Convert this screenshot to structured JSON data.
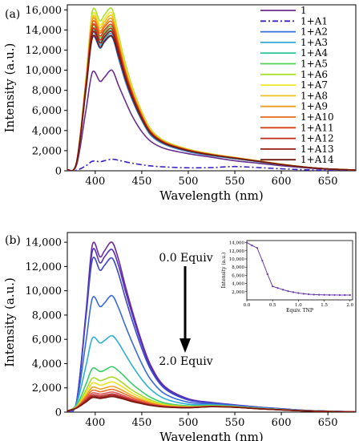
{
  "chart_data": [
    {
      "type": "line",
      "panel_label": "(a)",
      "xlabel": "Wavelength (nm)",
      "ylabel": "Intensity (a.u.)",
      "xlim": [
        370,
        680
      ],
      "ylim": [
        0,
        16500
      ],
      "xticks": [
        400,
        450,
        500,
        550,
        600,
        650
      ],
      "yticks": [
        0,
        2000,
        4000,
        6000,
        8000,
        10000,
        12000,
        14000,
        16000
      ],
      "ytick_labels": [
        "0",
        "2,000",
        "4,000",
        "6,000",
        "8,000",
        "10,000",
        "12,000",
        "14,000",
        "16,000"
      ],
      "legend_position": "top-right",
      "x": [
        370,
        380,
        390,
        397,
        405,
        410,
        418,
        425,
        432,
        440,
        450,
        460,
        475,
        500,
        525,
        550,
        575,
        600,
        625,
        650,
        680
      ],
      "series": [
        {
          "name": "1",
          "color": "#6a2e8e",
          "dash": "solid",
          "values": [
            100,
            600,
            6000,
            9800,
            8900,
            9300,
            10000,
            8500,
            7000,
            5400,
            3900,
            2900,
            2200,
            1700,
            1350,
            1000,
            750,
            500,
            300,
            150,
            60
          ]
        },
        {
          "name": "1+A1",
          "color": "#3a22c8",
          "dash": "dashdot",
          "values": [
            0,
            50,
            500,
            950,
            900,
            1000,
            1150,
            1050,
            900,
            750,
            600,
            480,
            380,
            300,
            320,
            420,
            320,
            200,
            100,
            50,
            20
          ]
        },
        {
          "name": "1+A2",
          "color": "#2f6fd8",
          "dash": "solid",
          "values": [
            100,
            800,
            8000,
            13200,
            12200,
            12800,
            13300,
            11200,
            9000,
            7000,
            5000,
            3500,
            2600,
            1900,
            1500,
            1200,
            900,
            600,
            350,
            180,
            70
          ]
        },
        {
          "name": "1+A3",
          "color": "#35a8d8",
          "dash": "solid",
          "values": [
            100,
            820,
            8200,
            13600,
            12500,
            13100,
            13600,
            11500,
            9200,
            7200,
            5100,
            3600,
            2650,
            1950,
            1530,
            1220,
            920,
            610,
            355,
            180,
            70
          ]
        },
        {
          "name": "1+A4",
          "color": "#2fc89a",
          "dash": "solid",
          "values": [
            100,
            830,
            8300,
            13900,
            12800,
            13400,
            13900,
            11700,
            9400,
            7300,
            5200,
            3650,
            2700,
            1980,
            1560,
            1240,
            930,
            620,
            360,
            185,
            70
          ]
        },
        {
          "name": "1+A5",
          "color": "#4fd24f",
          "dash": "solid",
          "values": [
            100,
            850,
            8500,
            14300,
            13200,
            13800,
            14300,
            12000,
            9700,
            7500,
            5350,
            3750,
            2750,
            2020,
            1580,
            1260,
            950,
            630,
            365,
            185,
            72
          ]
        },
        {
          "name": "1+A6",
          "color": "#a8e030",
          "dash": "solid",
          "values": [
            100,
            900,
            9200,
            15900,
            14900,
            15500,
            16100,
            13500,
            10800,
            8300,
            5900,
            4100,
            2950,
            2150,
            1680,
            1330,
            1000,
            660,
            380,
            190,
            75
          ]
        },
        {
          "name": "1+A7",
          "color": "#eee82a",
          "dash": "solid",
          "values": [
            100,
            880,
            9000,
            15500,
            14500,
            15100,
            15700,
            13200,
            10500,
            8100,
            5750,
            4000,
            2900,
            2120,
            1660,
            1310,
            990,
            650,
            375,
            188,
            74
          ]
        },
        {
          "name": "1+A8",
          "color": "#f0c020",
          "dash": "solid",
          "values": [
            100,
            870,
            8900,
            15200,
            14200,
            14800,
            15400,
            12900,
            10300,
            7950,
            5650,
            3950,
            2870,
            2100,
            1640,
            1300,
            980,
            645,
            372,
            186,
            73
          ]
        },
        {
          "name": "1+A9",
          "color": "#f09a1a",
          "dash": "solid",
          "values": [
            100,
            860,
            8800,
            15000,
            13900,
            14500,
            15100,
            12700,
            10100,
            7800,
            5550,
            3900,
            2840,
            2080,
            1630,
            1290,
            970,
            640,
            370,
            185,
            72
          ]
        },
        {
          "name": "1+A10",
          "color": "#e86818",
          "dash": "solid",
          "values": [
            100,
            850,
            8700,
            14700,
            13700,
            14300,
            14800,
            12500,
            9950,
            7700,
            5500,
            3850,
            2810,
            2060,
            1615,
            1280,
            965,
            635,
            368,
            184,
            72
          ]
        },
        {
          "name": "1+A11",
          "color": "#d84018",
          "dash": "solid",
          "values": [
            100,
            840,
            8600,
            14400,
            13400,
            14000,
            14500,
            12300,
            9800,
            7600,
            5420,
            3800,
            2780,
            2040,
            1600,
            1270,
            958,
            630,
            365,
            183,
            71
          ]
        },
        {
          "name": "1+A12",
          "color": "#c02818",
          "dash": "solid",
          "values": [
            100,
            830,
            8400,
            14000,
            13000,
            13600,
            14100,
            12000,
            9600,
            7450,
            5320,
            3740,
            2740,
            2015,
            1585,
            1260,
            950,
            625,
            362,
            182,
            71
          ]
        },
        {
          "name": "1+A13",
          "color": "#981c14",
          "dash": "solid",
          "values": [
            100,
            820,
            8300,
            13700,
            12700,
            13300,
            13800,
            11800,
            9450,
            7350,
            5250,
            3700,
            2720,
            2000,
            1575,
            1255,
            945,
            622,
            360,
            181,
            70
          ]
        },
        {
          "name": "1+A14",
          "color": "#6e1a10",
          "dash": "solid",
          "values": [
            100,
            810,
            8100,
            13300,
            12300,
            12900,
            13400,
            11500,
            9250,
            7200,
            5150,
            3650,
            2690,
            1985,
            1565,
            1250,
            940,
            620,
            358,
            180,
            70
          ]
        }
      ]
    },
    {
      "type": "line",
      "panel_label": "(b)",
      "xlabel": "Wavelength (nm)",
      "ylabel": "Intensity (a.u.)",
      "xlim": [
        370,
        680
      ],
      "ylim": [
        0,
        14800
      ],
      "xticks": [
        400,
        450,
        500,
        550,
        600,
        650
      ],
      "yticks": [
        0,
        2000,
        4000,
        6000,
        8000,
        10000,
        12000,
        14000
      ],
      "ytick_labels": [
        "0",
        "2,000",
        "4,000",
        "6,000",
        "8,000",
        "10,000",
        "12,000",
        "14,000"
      ],
      "annotations": {
        "start": "0.0 Equiv",
        "end": "2.0 Equiv"
      },
      "x": [
        370,
        380,
        390,
        397,
        405,
        410,
        418,
        425,
        432,
        440,
        450,
        460,
        475,
        500,
        525,
        550,
        575,
        600,
        625,
        650,
        680
      ],
      "series": [
        {
          "name": "",
          "color": "#6a2a9e",
          "dash": "solid",
          "values": [
            100,
            900,
            8200,
            13800,
            12800,
            13300,
            14000,
            12600,
            10500,
            8300,
            5800,
            3800,
            2100,
            1100,
            800,
            600,
            420,
            280,
            150,
            80,
            30
          ]
        },
        {
          "name": "",
          "color": "#5530b8",
          "dash": "solid",
          "values": [
            100,
            880,
            8000,
            13300,
            12300,
            12800,
            13400,
            12100,
            10100,
            8000,
            5600,
            3650,
            2030,
            1060,
            780,
            585,
            410,
            275,
            148,
            78,
            30
          ]
        },
        {
          "name": "",
          "color": "#3f46cc",
          "dash": "solid",
          "values": [
            100,
            860,
            7800,
            12600,
            11700,
            12100,
            12700,
            11400,
            9500,
            7500,
            5250,
            3450,
            1920,
            1000,
            750,
            570,
            400,
            270,
            145,
            76,
            29
          ]
        },
        {
          "name": "",
          "color": "#3a6ad8",
          "dash": "solid",
          "values": [
            100,
            800,
            5800,
            9400,
            8700,
            9000,
            9600,
            8600,
            7200,
            5700,
            4000,
            2650,
            1500,
            820,
            680,
            540,
            380,
            255,
            138,
            72,
            28
          ]
        },
        {
          "name": "",
          "color": "#2fb0d0",
          "dash": "solid",
          "values": [
            100,
            700,
            3800,
            6100,
            5700,
            5900,
            6300,
            5700,
            4800,
            3800,
            2700,
            1850,
            1100,
            650,
            600,
            500,
            350,
            235,
            128,
            68,
            26
          ]
        },
        {
          "name": "",
          "color": "#3acc6a",
          "dash": "solid",
          "values": [
            100,
            550,
            2300,
            3600,
            3350,
            3450,
            3750,
            3400,
            2900,
            2300,
            1700,
            1200,
            750,
            520,
            540,
            460,
            320,
            215,
            118,
            62,
            24
          ]
        },
        {
          "name": "",
          "color": "#a8d828",
          "dash": "solid",
          "values": [
            100,
            480,
            1800,
            2800,
            2600,
            2700,
            2900,
            2650,
            2250,
            1800,
            1350,
            980,
            640,
            470,
            510,
            440,
            305,
            205,
            112,
            60,
            23
          ]
        },
        {
          "name": "",
          "color": "#f0e020",
          "dash": "solid",
          "values": [
            100,
            440,
            1550,
            2400,
            2230,
            2300,
            2500,
            2280,
            1950,
            1560,
            1180,
            870,
            580,
            440,
            495,
            430,
            298,
            200,
            110,
            58,
            22
          ]
        },
        {
          "name": "",
          "color": "#f0a020",
          "dash": "solid",
          "values": [
            100,
            410,
            1350,
            2050,
            1900,
            1980,
            2130,
            1950,
            1680,
            1350,
            1030,
            770,
            530,
            415,
            480,
            420,
            292,
            196,
            108,
            57,
            22
          ]
        },
        {
          "name": "",
          "color": "#e87028",
          "dash": "solid",
          "values": [
            100,
            390,
            1200,
            1800,
            1680,
            1750,
            1880,
            1720,
            1490,
            1200,
            930,
            700,
            495,
            400,
            470,
            415,
            288,
            193,
            106,
            56,
            21
          ]
        },
        {
          "name": "",
          "color": "#e05050",
          "dash": "solid",
          "values": [
            100,
            370,
            1080,
            1580,
            1480,
            1540,
            1660,
            1520,
            1320,
            1070,
            840,
            640,
            465,
            385,
            462,
            410,
            284,
            190,
            104,
            55,
            21
          ]
        },
        {
          "name": "",
          "color": "#c03030",
          "dash": "solid",
          "values": [
            100,
            355,
            980,
            1420,
            1330,
            1390,
            1500,
            1380,
            1200,
            980,
            780,
            600,
            445,
            375,
            456,
            405,
            281,
            188,
            103,
            54,
            21
          ]
        },
        {
          "name": "",
          "color": "#a02020",
          "dash": "solid",
          "values": [
            100,
            345,
            900,
            1300,
            1220,
            1270,
            1380,
            1270,
            1110,
            910,
            730,
            570,
            430,
            368,
            452,
            402,
            279,
            187,
            102,
            54,
            20
          ]
        },
        {
          "name": "",
          "color": "#7a1810",
          "dash": "solid",
          "values": [
            100,
            335,
            830,
            1200,
            1130,
            1180,
            1280,
            1180,
            1040,
            860,
            695,
            550,
            420,
            362,
            448,
            400,
            278,
            186,
            101,
            53,
            20
          ]
        }
      ],
      "inset": {
        "type": "line",
        "xlabel": "Equiv. TNP",
        "ylabel": "Intensity (a.u.)",
        "xlim": [
          0,
          2.05
        ],
        "ylim": [
          0,
          14500
        ],
        "xticks": [
          0.0,
          0.5,
          1.0,
          1.5,
          2.0
        ],
        "xtick_labels": [
          "0.0",
          "0.5",
          "1.0",
          "1.5",
          "2.0"
        ],
        "yticks": [
          2000,
          4000,
          6000,
          8000,
          10000,
          12000,
          14000
        ],
        "ytick_labels": [
          "2,000",
          "4,000",
          "6,000",
          "8,000",
          "10,000",
          "12,000",
          "14,000"
        ],
        "color": "#6a3aa8",
        "x": [
          0.0,
          0.1,
          0.2,
          0.3,
          0.4,
          0.5,
          0.6,
          0.7,
          0.8,
          0.9,
          1.0,
          1.1,
          1.2,
          1.3,
          1.4,
          1.5,
          1.6,
          1.7,
          1.8,
          1.9,
          2.0
        ],
        "y": [
          14000,
          13300,
          12700,
          9600,
          6300,
          3300,
          2900,
          2500,
          2130,
          1880,
          1660,
          1500,
          1380,
          1300,
          1250,
          1220,
          1200,
          1190,
          1180,
          1175,
          1170
        ]
      }
    }
  ]
}
